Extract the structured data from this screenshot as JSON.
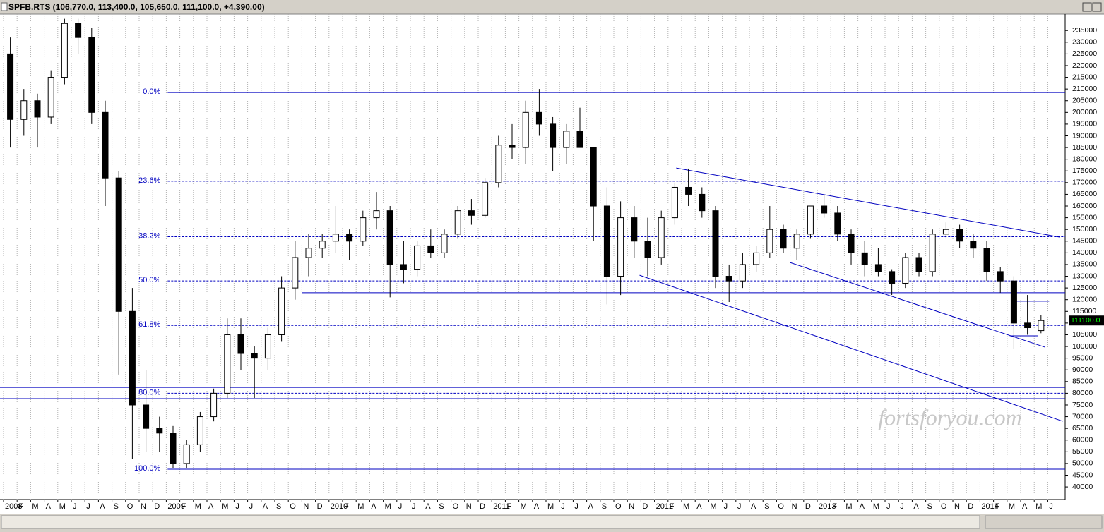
{
  "chart_data": {
    "type": "candlestick",
    "title": "SPFB.RTS (106,770.0, 113,400.0, 105,650.0, 111,100.0, +4,390.00)",
    "watermark": "fortsforyou.com",
    "x": [
      0,
      1,
      2,
      3,
      4,
      5,
      6,
      7,
      8,
      9,
      10,
      11,
      12,
      13,
      14,
      15,
      16,
      17,
      18,
      19,
      20,
      21,
      22,
      23,
      24,
      25,
      26,
      27,
      28,
      29,
      30,
      31,
      32,
      33,
      34,
      35,
      36,
      37,
      38,
      39,
      40,
      41,
      42,
      43,
      44,
      45,
      46,
      47,
      48,
      49,
      50,
      51,
      52,
      53,
      54,
      55,
      56,
      57,
      58,
      59,
      60,
      61,
      62,
      63,
      64,
      65,
      66,
      67,
      68,
      69,
      70,
      71,
      72,
      73,
      74,
      75,
      76
    ],
    "open": [
      225000,
      197000,
      205000,
      198000,
      215000,
      238000,
      232000,
      200000,
      172000,
      115000,
      75000,
      65000,
      63000,
      50000,
      58000,
      70000,
      80000,
      105000,
      97000,
      95000,
      105000,
      125000,
      138000,
      142000,
      145000,
      148000,
      145000,
      155000,
      158000,
      135000,
      133000,
      143000,
      140000,
      148000,
      158000,
      156000,
      170000,
      186000,
      185000,
      200000,
      195000,
      185000,
      192000,
      185000,
      160000,
      130000,
      155000,
      145000,
      138000,
      155000,
      168000,
      165000,
      158000,
      130000,
      128000,
      135000,
      140000,
      150000,
      142000,
      148000,
      160000,
      157000,
      148000,
      140000,
      135000,
      132000,
      127000,
      138000,
      132000,
      148000,
      150000,
      145000,
      142000,
      132000,
      128000,
      110000,
      106770
    ],
    "high": [
      232000,
      210000,
      208000,
      218000,
      240000,
      240000,
      236000,
      205000,
      175000,
      125000,
      90000,
      70000,
      66000,
      60000,
      72000,
      82000,
      112000,
      112000,
      100000,
      108000,
      130000,
      145000,
      148000,
      148000,
      160000,
      150000,
      158000,
      166000,
      160000,
      145000,
      145000,
      150000,
      150000,
      160000,
      163000,
      172000,
      190000,
      195000,
      205000,
      210000,
      198000,
      195000,
      202000,
      185000,
      168000,
      162000,
      160000,
      155000,
      158000,
      170000,
      176000,
      168000,
      160000,
      135000,
      140000,
      143000,
      160000,
      152000,
      150000,
      160000,
      165000,
      160000,
      150000,
      145000,
      142000,
      133000,
      140000,
      140000,
      150000,
      153000,
      152000,
      148000,
      145000,
      134000,
      130000,
      122000,
      113400
    ],
    "low": [
      185000,
      190000,
      185000,
      195000,
      212000,
      225000,
      195000,
      160000,
      88000,
      52000,
      55000,
      55000,
      48000,
      48000,
      55000,
      68000,
      78000,
      90000,
      78000,
      90000,
      102000,
      120000,
      130000,
      138000,
      140000,
      137000,
      143000,
      150000,
      121000,
      127000,
      130000,
      138000,
      138000,
      146000,
      152000,
      155000,
      168000,
      180000,
      178000,
      190000,
      175000,
      178000,
      185000,
      145000,
      118000,
      122000,
      138000,
      130000,
      135000,
      152000,
      160000,
      155000,
      125000,
      119000,
      125000,
      132000,
      138000,
      140000,
      137000,
      146000,
      155000,
      145000,
      135000,
      130000,
      130000,
      122000,
      125000,
      130000,
      130000,
      146000,
      142000,
      138000,
      128000,
      123000,
      99000,
      105000,
      105650
    ],
    "close": [
      197000,
      205000,
      198000,
      215000,
      238000,
      232000,
      200000,
      172000,
      115000,
      75000,
      65000,
      63000,
      50000,
      58000,
      70000,
      80000,
      105000,
      97000,
      95000,
      105000,
      125000,
      138000,
      142000,
      145000,
      148000,
      145000,
      155000,
      158000,
      135000,
      133000,
      143000,
      140000,
      148000,
      158000,
      156000,
      170000,
      186000,
      185000,
      200000,
      195000,
      185000,
      192000,
      185000,
      160000,
      130000,
      155000,
      145000,
      138000,
      155000,
      168000,
      165000,
      158000,
      130000,
      128000,
      135000,
      140000,
      150000,
      142000,
      148000,
      160000,
      157000,
      148000,
      140000,
      135000,
      132000,
      127000,
      138000,
      132000,
      148000,
      150000,
      145000,
      142000,
      132000,
      128000,
      110000,
      108000,
      111100
    ],
    "last_price": {
      "value": 111100,
      "label": "111100.0"
    },
    "xlim": [
      -0.26,
      78.28
    ],
    "ylim": [
      34600,
      242000
    ],
    "xticks": [
      {
        "value": 0,
        "label": "2008"
      },
      {
        "value": 1,
        "label": "F"
      },
      {
        "value": 2,
        "label": "M"
      },
      {
        "value": 3,
        "label": "A"
      },
      {
        "value": 4,
        "label": "M"
      },
      {
        "value": 5,
        "label": "J"
      },
      {
        "value": 6,
        "label": "J"
      },
      {
        "value": 7,
        "label": "A"
      },
      {
        "value": 8,
        "label": "S"
      },
      {
        "value": 9,
        "label": "O"
      },
      {
        "value": 10,
        "label": "N"
      },
      {
        "value": 11,
        "label": "D"
      },
      {
        "value": 12,
        "label": "2009"
      },
      {
        "value": 13,
        "label": "F"
      },
      {
        "value": 14,
        "label": "M"
      },
      {
        "value": 15,
        "label": "A"
      },
      {
        "value": 16,
        "label": "M"
      },
      {
        "value": 17,
        "label": "J"
      },
      {
        "value": 18,
        "label": "J"
      },
      {
        "value": 19,
        "label": "A"
      },
      {
        "value": 20,
        "label": "S"
      },
      {
        "value": 21,
        "label": "O"
      },
      {
        "value": 22,
        "label": "N"
      },
      {
        "value": 23,
        "label": "D"
      },
      {
        "value": 24,
        "label": "2010"
      },
      {
        "value": 25,
        "label": "F"
      },
      {
        "value": 26,
        "label": "M"
      },
      {
        "value": 27,
        "label": "A"
      },
      {
        "value": 28,
        "label": "M"
      },
      {
        "value": 29,
        "label": "J"
      },
      {
        "value": 30,
        "label": "J"
      },
      {
        "value": 31,
        "label": "A"
      },
      {
        "value": 32,
        "label": "S"
      },
      {
        "value": 33,
        "label": "O"
      },
      {
        "value": 34,
        "label": "N"
      },
      {
        "value": 35,
        "label": "D"
      },
      {
        "value": 36,
        "label": "2011"
      },
      {
        "value": 37,
        "label": "F"
      },
      {
        "value": 38,
        "label": "M"
      },
      {
        "value": 39,
        "label": "A"
      },
      {
        "value": 40,
        "label": "M"
      },
      {
        "value": 41,
        "label": "J"
      },
      {
        "value": 42,
        "label": "J"
      },
      {
        "value": 43,
        "label": "A"
      },
      {
        "value": 44,
        "label": "S"
      },
      {
        "value": 45,
        "label": "O"
      },
      {
        "value": 46,
        "label": "N"
      },
      {
        "value": 47,
        "label": "D"
      },
      {
        "value": 48,
        "label": "2012"
      },
      {
        "value": 49,
        "label": "F"
      },
      {
        "value": 50,
        "label": "M"
      },
      {
        "value": 51,
        "label": "A"
      },
      {
        "value": 52,
        "label": "M"
      },
      {
        "value": 53,
        "label": "J"
      },
      {
        "value": 54,
        "label": "J"
      },
      {
        "value": 55,
        "label": "A"
      },
      {
        "value": 56,
        "label": "S"
      },
      {
        "value": 57,
        "label": "O"
      },
      {
        "value": 58,
        "label": "N"
      },
      {
        "value": 59,
        "label": "D"
      },
      {
        "value": 60,
        "label": "2013"
      },
      {
        "value": 61,
        "label": "F"
      },
      {
        "value": 62,
        "label": "M"
      },
      {
        "value": 63,
        "label": "A"
      },
      {
        "value": 64,
        "label": "M"
      },
      {
        "value": 65,
        "label": "J"
      },
      {
        "value": 66,
        "label": "J"
      },
      {
        "value": 67,
        "label": "A"
      },
      {
        "value": 68,
        "label": "S"
      },
      {
        "value": 69,
        "label": "O"
      },
      {
        "value": 70,
        "label": "N"
      },
      {
        "value": 71,
        "label": "D"
      },
      {
        "value": 72,
        "label": "2014"
      },
      {
        "value": 73,
        "label": "F"
      },
      {
        "value": 74,
        "label": "M"
      },
      {
        "value": 75,
        "label": "A"
      },
      {
        "value": 76,
        "label": "M"
      },
      {
        "value": 77,
        "label": "J"
      }
    ],
    "yticks": [
      40000,
      45000,
      50000,
      55000,
      60000,
      65000,
      70000,
      75000,
      80000,
      85000,
      90000,
      95000,
      100000,
      105000,
      110000,
      115000,
      120000,
      125000,
      130000,
      135000,
      140000,
      145000,
      150000,
      155000,
      160000,
      165000,
      170000,
      175000,
      180000,
      185000,
      190000,
      195000,
      200000,
      205000,
      210000,
      215000,
      220000,
      225000,
      230000,
      235000
    ],
    "fib_levels": [
      {
        "value": 208500,
        "label": "0.0%",
        "style": "solid"
      },
      {
        "value": 170600,
        "label": "23.6%",
        "style": "dashed"
      },
      {
        "value": 146900,
        "label": "38.2%",
        "style": "dashed"
      },
      {
        "value": 128000,
        "label": "50.0%",
        "style": "dashed"
      },
      {
        "value": 109000,
        "label": "61.8%",
        "style": "dashed"
      },
      {
        "value": 80000,
        "label": "80.0%",
        "style": "dashed"
      },
      {
        "value": 47550,
        "label": "100.0%",
        "style": "solid"
      }
    ],
    "fib_start_x": 12.1,
    "trend_lines": [
      {
        "x": [
          49.6,
          77.9
        ],
        "y": [
          176250,
          146700
        ]
      },
      {
        "x": [
          46.9,
          78.1
        ],
        "y": [
          130430,
          68040
        ]
      },
      {
        "x": [
          58.0,
          76.8
        ],
        "y": [
          135860,
          99690
        ]
      },
      {
        "x": [
          22.0,
          78.28
        ],
        "y": [
          122950,
          122950
        ]
      },
      {
        "x": [
          -0.26,
          78.28
        ],
        "y": [
          82510,
          82510
        ]
      },
      {
        "x": [
          -0.26,
          78.28
        ],
        "y": [
          77700,
          77700
        ]
      },
      {
        "x": [
          74.7,
          77.1
        ],
        "y": [
          119330,
          119330
        ]
      },
      {
        "x": [
          74.2,
          76.3
        ],
        "y": [
          104540,
          104540
        ]
      }
    ],
    "grid": true,
    "line_color": "#0000c0"
  }
}
